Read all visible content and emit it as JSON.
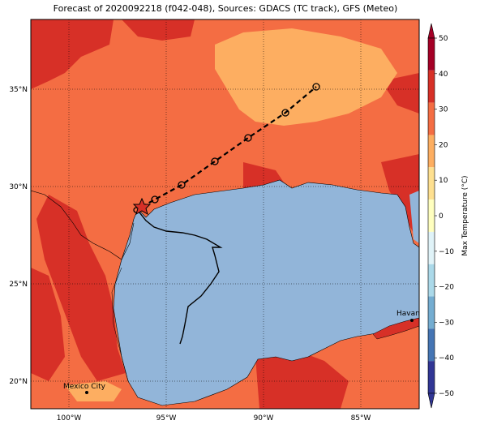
{
  "title": "Forecast of 2020092218 (f042-048), Sources: GDACS (TC track), GFS (Meteo)",
  "map": {
    "lon_ticks": [
      "100°W",
      "95°W",
      "90°W",
      "85°W"
    ],
    "lat_ticks": [
      "35°N",
      "30°N",
      "25°N",
      "20°N"
    ],
    "cities": [
      {
        "name": "Mexico City"
      },
      {
        "name": "Havana"
      }
    ],
    "colors": {
      "ocean": "#92b5d9",
      "land_base": "#f46d43",
      "land_hot": "#d73027",
      "land_mild": "#fdae61"
    }
  },
  "colorbar": {
    "label": "Max Temperature (°C)",
    "ticks": [
      "50",
      "40",
      "30",
      "20",
      "10",
      "0",
      "−10",
      "−20",
      "−30",
      "−40",
      "−50"
    ],
    "colors": [
      "#a50026",
      "#d73027",
      "#f46d43",
      "#fdae61",
      "#fee090",
      "#ffffbf",
      "#e0f3f8",
      "#abd9e9",
      "#74add1",
      "#4575b4",
      "#313695"
    ]
  },
  "track": {
    "forecast_points": 8,
    "marker": "star"
  }
}
